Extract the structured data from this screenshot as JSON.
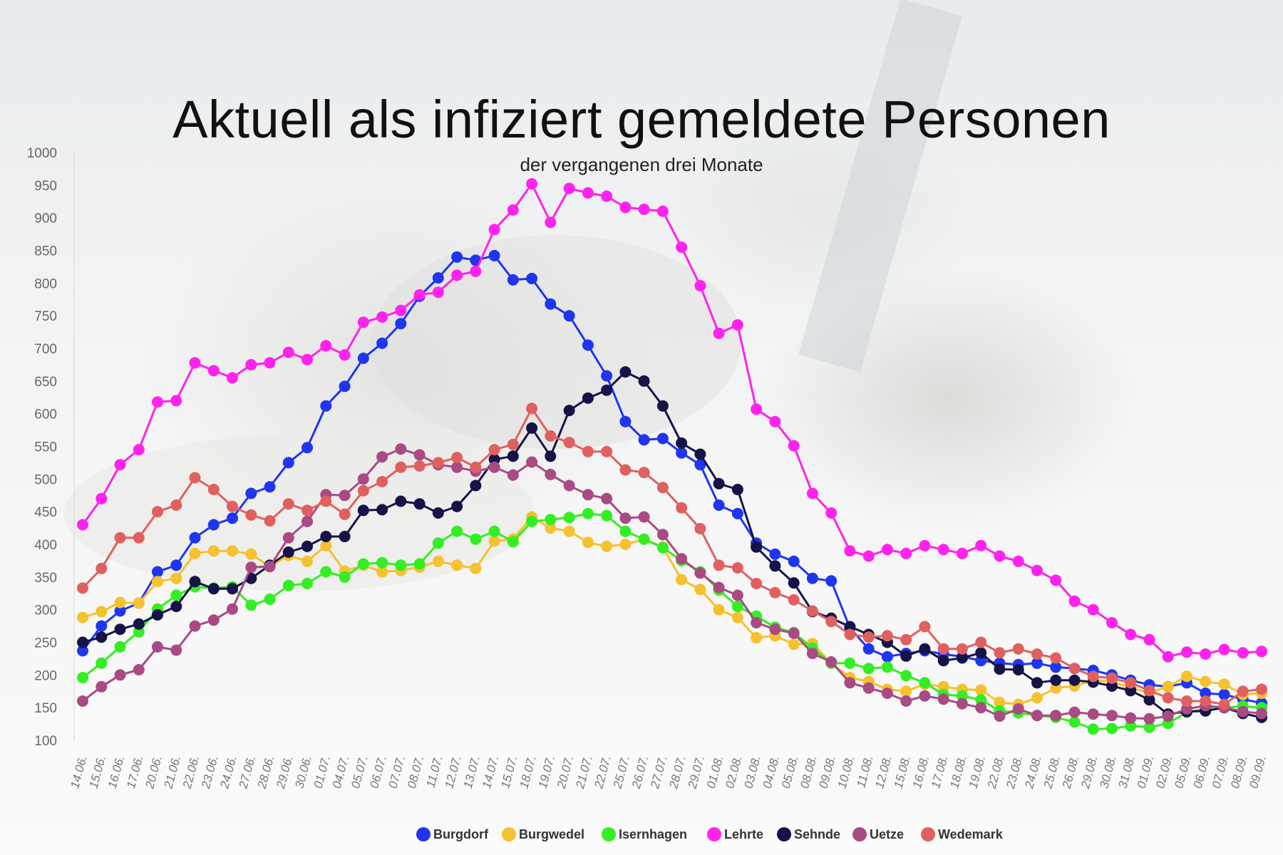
{
  "chart_data": {
    "type": "line",
    "title": "Aktuell als infiziert gemeldete Personen",
    "subtitle": "der vergangenen drei Monate",
    "ylim": [
      100,
      1000
    ],
    "yticks": [
      100,
      150,
      200,
      250,
      300,
      350,
      400,
      450,
      500,
      550,
      600,
      650,
      700,
      750,
      800,
      850,
      900,
      950,
      1000
    ],
    "grid": false,
    "legend_position": "bottom",
    "categories": [
      "14.06.",
      "15.06.",
      "16.06.",
      "17.06.",
      "20.06.",
      "21.06.",
      "22.06.",
      "23.06.",
      "24.06.",
      "27.06.",
      "28.06.",
      "29.06.",
      "30.06.",
      "01.07.",
      "04.07.",
      "05.07.",
      "06.07.",
      "07.07.",
      "08.07.",
      "11.07.",
      "12.07.",
      "13.07.",
      "14.07.",
      "15.07.",
      "18.07.",
      "19.07.",
      "20.07.",
      "21.07.",
      "22.07.",
      "25.07.",
      "26.07.",
      "27.07.",
      "28.07.",
      "29.07.",
      "01.08.",
      "02.08.",
      "03.08.",
      "04.08.",
      "05.08.",
      "08.08.",
      "09.08.",
      "10.08.",
      "11.08.",
      "12.08.",
      "15.08.",
      "16.08.",
      "17.08.",
      "18.08.",
      "19.08.",
      "22.08.",
      "23.08.",
      "24.08.",
      "25.08.",
      "26.08.",
      "29.08.",
      "30.08.",
      "31.08.",
      "01.09.",
      "02.09.",
      "05.09.",
      "06.09.",
      "07.09.",
      "08.09.",
      "09.09."
    ],
    "series": [
      {
        "name": "Burgdorf",
        "color": "#1f35f0",
        "values": [
          237,
          275,
          298,
          310,
          358,
          368,
          410,
          430,
          440,
          478,
          488,
          525,
          548,
          612,
          642,
          685,
          708,
          738,
          780,
          808,
          840,
          835,
          842,
          805,
          807,
          768,
          750,
          705,
          658,
          588,
          560,
          562,
          540,
          522,
          460,
          447,
          402,
          385,
          374,
          348,
          344,
          272,
          240,
          228,
          233,
          237,
          232,
          228,
          222,
          218,
          216,
          218,
          212,
          210,
          207,
          200,
          192,
          185,
          182,
          188,
          172,
          170,
          163,
          157
        ]
      },
      {
        "name": "Burgwedel",
        "color": "#f5c12e",
        "values": [
          288,
          297,
          311,
          310,
          343,
          348,
          386,
          390,
          390,
          385,
          366,
          383,
          374,
          398,
          359,
          368,
          358,
          360,
          365,
          374,
          368,
          363,
          405,
          408,
          442,
          425,
          420,
          403,
          397,
          400,
          408,
          396,
          346,
          331,
          300,
          288,
          257,
          260,
          247,
          248,
          218,
          196,
          190,
          178,
          175,
          186,
          182,
          178,
          177,
          158,
          155,
          165,
          180,
          183,
          192,
          190,
          180,
          173,
          182,
          198,
          190,
          186,
          170,
          172
        ]
      },
      {
        "name": "Isernhagen",
        "color": "#33ee22",
        "values": [
          196,
          218,
          243,
          266,
          301,
          322,
          335,
          333,
          335,
          307,
          316,
          337,
          340,
          358,
          350,
          370,
          372,
          368,
          370,
          402,
          420,
          408,
          420,
          404,
          435,
          438,
          441,
          447,
          444,
          420,
          408,
          395,
          375,
          358,
          330,
          305,
          290,
          273,
          265,
          241,
          218,
          218,
          210,
          212,
          199,
          188,
          170,
          168,
          162,
          145,
          142,
          138,
          135,
          128,
          117,
          118,
          122,
          120,
          126,
          143,
          148,
          150,
          152,
          150
        ]
      },
      {
        "name": "Lehrte",
        "color": "#ff22ee",
        "values": [
          430,
          470,
          522,
          545,
          618,
          620,
          678,
          666,
          655,
          675,
          678,
          694,
          683,
          704,
          690,
          740,
          748,
          758,
          782,
          786,
          812,
          818,
          882,
          912,
          952,
          893,
          945,
          938,
          933,
          916,
          913,
          910,
          855,
          796,
          723,
          736,
          607,
          588,
          551,
          478,
          448,
          390,
          382,
          392,
          386,
          398,
          392,
          386,
          398,
          382,
          374,
          360,
          345,
          313,
          300,
          280,
          262,
          254,
          228,
          235,
          232,
          239,
          234,
          236
        ]
      },
      {
        "name": "Sehnde",
        "color": "#151347",
        "values": [
          250,
          258,
          270,
          278,
          292,
          305,
          343,
          332,
          332,
          348,
          368,
          388,
          397,
          412,
          412,
          452,
          453,
          466,
          462,
          448,
          458,
          490,
          530,
          535,
          578,
          535,
          605,
          624,
          636,
          664,
          650,
          612,
          555,
          538,
          493,
          484,
          396,
          367,
          341,
          297,
          287,
          274,
          262,
          250,
          229,
          240,
          222,
          226,
          234,
          209,
          208,
          188,
          192,
          192,
          189,
          183,
          176,
          162,
          140,
          144,
          145,
          150,
          141,
          135
        ]
      },
      {
        "name": "Uetze",
        "color": "#a94a83",
        "values": [
          160,
          182,
          200,
          208,
          243,
          238,
          275,
          284,
          301,
          365,
          366,
          410,
          435,
          476,
          475,
          500,
          534,
          546,
          537,
          522,
          518,
          512,
          518,
          506,
          526,
          507,
          490,
          476,
          470,
          440,
          442,
          415,
          378,
          356,
          334,
          322,
          280,
          270,
          264,
          233,
          220,
          188,
          180,
          172,
          160,
          168,
          163,
          156,
          150,
          137,
          148,
          138,
          138,
          143,
          140,
          138,
          134,
          133,
          137,
          148,
          153,
          150,
          144,
          141
        ]
      },
      {
        "name": "Wedemark",
        "color": "#e06060",
        "values": [
          333,
          363,
          410,
          410,
          450,
          460,
          502,
          484,
          458,
          445,
          436,
          462,
          452,
          466,
          446,
          482,
          496,
          518,
          520,
          525,
          533,
          518,
          545,
          553,
          608,
          566,
          556,
          542,
          542,
          514,
          510,
          487,
          456,
          424,
          368,
          364,
          340,
          326,
          315,
          298,
          282,
          262,
          258,
          260,
          254,
          274,
          240,
          240,
          250,
          234,
          240,
          232,
          226,
          210,
          198,
          195,
          188,
          176,
          165,
          160,
          160,
          155,
          175,
          178
        ]
      }
    ]
  }
}
